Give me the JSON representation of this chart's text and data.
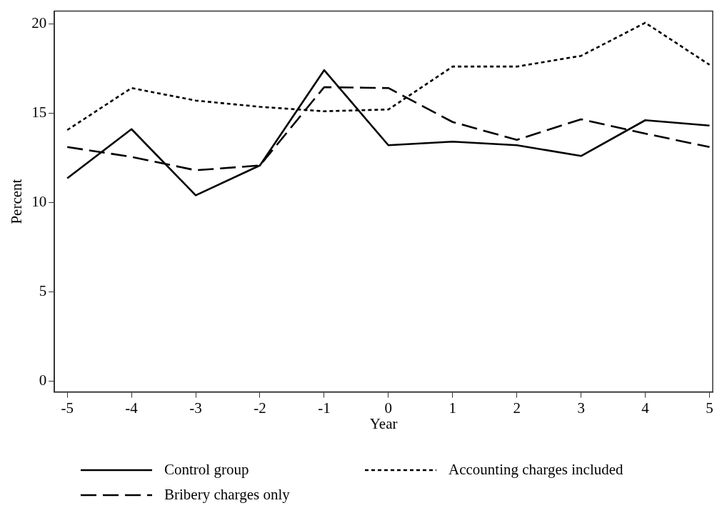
{
  "chart_data": {
    "type": "line",
    "xlabel": "Year",
    "ylabel": "Percent",
    "x": [
      -5,
      -4,
      -3,
      -2,
      -1,
      0,
      1,
      2,
      3,
      4,
      5
    ],
    "xlim": [
      -5.2,
      5.05
    ],
    "xticks": [
      -5,
      -4,
      -3,
      -2,
      -1,
      0,
      1,
      2,
      3,
      4,
      5
    ],
    "ylim": [
      -0.6,
      20.7
    ],
    "yticks": [
      0,
      5,
      10,
      15,
      20
    ],
    "grid": false,
    "legend": "bottom",
    "marker": "none",
    "series": [
      {
        "name": "Control group",
        "color": "#000000",
        "line_style": "solid",
        "values": [
          11.35,
          14.1,
          10.4,
          12.07,
          17.4,
          13.2,
          13.4,
          13.2,
          12.6,
          14.6,
          14.3
        ]
      },
      {
        "name": "Bribery charges only",
        "color": "#000000",
        "line_style": "dashed",
        "values": [
          13.1,
          12.55,
          11.8,
          12.07,
          16.45,
          16.4,
          14.5,
          13.5,
          14.65,
          13.85,
          13.1
        ]
      },
      {
        "name": "Accounting charges included",
        "color": "#000000",
        "line_style": "dotted",
        "values": [
          14.05,
          16.4,
          15.7,
          15.35,
          15.1,
          15.2,
          17.6,
          17.6,
          18.2,
          20.05,
          17.7
        ]
      }
    ]
  }
}
